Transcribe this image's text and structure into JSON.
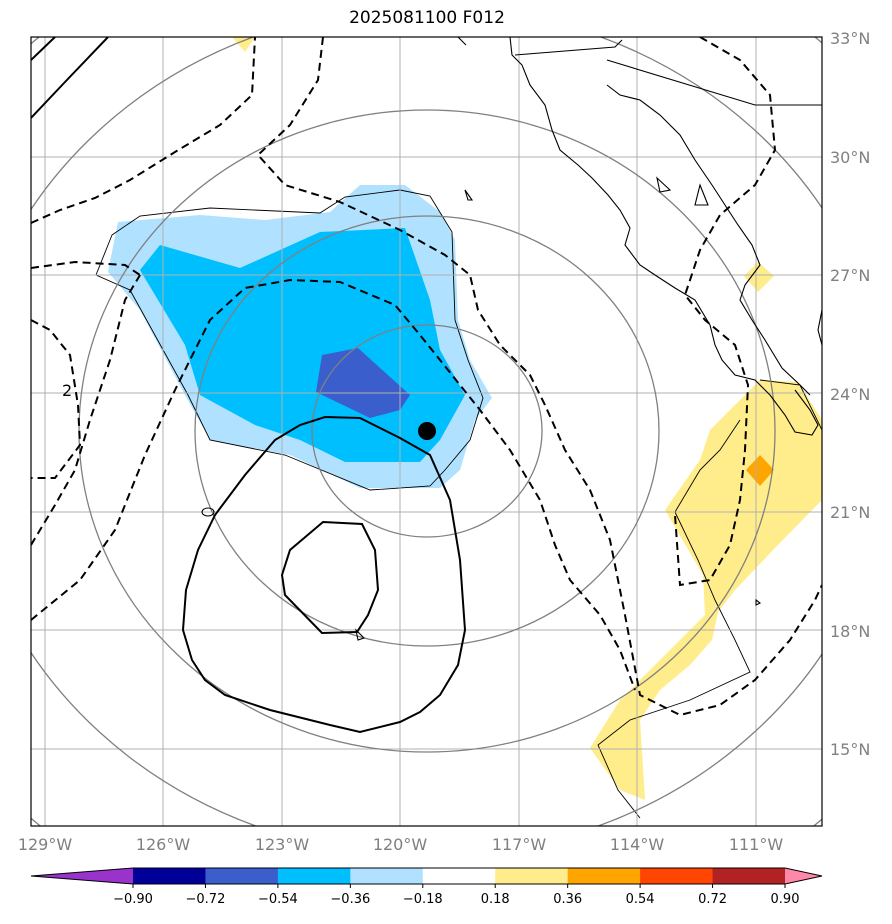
{
  "title": "2025081100 F012",
  "lat_labels": [
    "33°N",
    "30°N",
    "27°N",
    "24°N",
    "21°N",
    "18°N",
    "15°N"
  ],
  "lon_labels": [
    "129°W",
    "126°W",
    "123°W",
    "120°W",
    "117°W",
    "114°W",
    "111°W"
  ],
  "contour_label": "2",
  "colorbar": {
    "ticks": [
      "−0.90",
      "−0.72",
      "−0.54",
      "−0.36",
      "−0.18",
      "0.18",
      "0.36",
      "0.54",
      "0.72",
      "0.90"
    ],
    "colors": [
      "#9933cc",
      "#000099",
      "#3a5fcd",
      "#00bfff",
      "#b0e2ff",
      "#ffffff",
      "#ffec8b",
      "#ffa500",
      "#ff4500",
      "#b22222",
      "#ff88aa"
    ]
  },
  "colors": {
    "grid": "#b0b0b0",
    "great_circle": "#808080",
    "frame": "#000000"
  }
}
